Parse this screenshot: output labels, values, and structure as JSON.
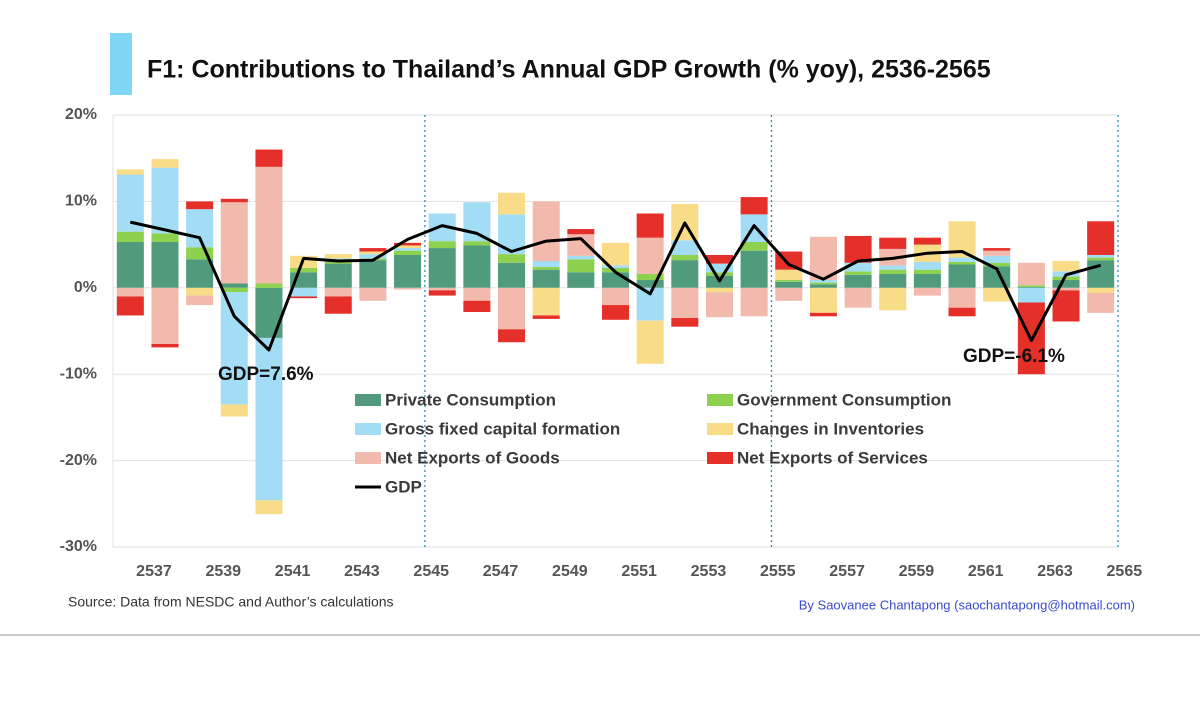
{
  "chart_data": {
    "type": "bar",
    "title": "F1: Contributions to Thailand’s Annual GDP Growth (% yoy), 2536-2565",
    "source": "Source: Data from NESDC and Author’s calculations",
    "credit": "By Saovanee Chantapong (saochantapong@hotmail.com)",
    "annotations": [
      "GDP=7.6%",
      "GDP=-6.1%"
    ],
    "x": [
      2536,
      2537,
      2538,
      2539,
      2540,
      2541,
      2542,
      2543,
      2544,
      2545,
      2546,
      2547,
      2548,
      2549,
      2550,
      2551,
      2552,
      2553,
      2554,
      2555,
      2556,
      2557,
      2558,
      2559,
      2560,
      2561,
      2562,
      2563,
      2564
    ],
    "xlim": [
      2535.5,
      2564.5
    ],
    "xticks": [
      2537,
      2539,
      2541,
      2543,
      2545,
      2547,
      2549,
      2551,
      2553,
      2555,
      2557,
      2559,
      2561,
      2563,
      2565
    ],
    "ylim": [
      -30,
      20
    ],
    "yticks": [
      {
        "value": 20,
        "label": "20%"
      },
      {
        "value": 10,
        "label": "10%"
      },
      {
        "value": 0,
        "label": "0%"
      },
      {
        "value": -10,
        "label": "-10%"
      },
      {
        "value": -20,
        "label": "-20%"
      },
      {
        "value": -30,
        "label": "-30%"
      }
    ],
    "grid": true,
    "vlines": [
      2544.5,
      2554.5,
      2564.5
    ],
    "series": [
      {
        "name": "Private Consumption",
        "color": "#4f9b7c",
        "values": [
          5.3,
          5.3,
          3.3,
          0.5,
          -5.8,
          1.8,
          2.8,
          3.2,
          3.8,
          4.6,
          4.9,
          2.9,
          2.1,
          1.8,
          1.8,
          0.9,
          3.2,
          1.4,
          4.3,
          0.7,
          0.4,
          1.5,
          1.6,
          1.6,
          2.7,
          2.5,
          0.1,
          0.9,
          3.2
        ]
      },
      {
        "name": "Government Consumption",
        "color": "#8ed14f",
        "values": [
          1.2,
          1.0,
          1.4,
          -0.5,
          0.5,
          0.5,
          0.3,
          0.2,
          0.5,
          0.8,
          0.5,
          1.0,
          0.3,
          1.5,
          0.5,
          0.7,
          0.6,
          0.4,
          1.0,
          0.2,
          0.2,
          0.4,
          0.5,
          0.5,
          0.3,
          0.4,
          0.2,
          0.4,
          0.3
        ]
      },
      {
        "name": "Gross fixed capital formation",
        "color": "#a3ddf5",
        "values": [
          6.6,
          7.6,
          4.4,
          -13.0,
          -18.8,
          -1.0,
          0.3,
          0.5,
          0.3,
          3.2,
          4.5,
          4.6,
          0.7,
          0.4,
          0.3,
          -3.8,
          1.7,
          1.0,
          3.2,
          0,
          0.3,
          1.0,
          0.5,
          0.9,
          0.5,
          0.8,
          -1.7,
          0.6,
          0.3
        ]
      },
      {
        "name": "Changes in Inventories",
        "color": "#f8dc88",
        "values": [
          0.6,
          1.0,
          -0.9,
          -1.4,
          -1.6,
          1.4,
          0.5,
          0.3,
          0.3,
          0,
          0,
          2.5,
          -3.2,
          0,
          2.6,
          -5.0,
          4.2,
          -0.5,
          0,
          1.2,
          -2.9,
          0,
          -2.6,
          2.0,
          4.2,
          -1.6,
          0,
          1.2,
          -0.6
        ]
      },
      {
        "name": "Net Exports of Goods",
        "color": "#f2b9ad",
        "values": [
          -1.0,
          -6.5,
          -1.1,
          9.4,
          13.5,
          0,
          -1.0,
          -1.5,
          -0.2,
          -0.3,
          -1.5,
          -4.8,
          6.9,
          2.5,
          -2.0,
          4.2,
          -3.5,
          -2.9,
          -3.3,
          -1.5,
          5.0,
          -2.3,
          1.9,
          -0.9,
          -2.3,
          0.6,
          2.6,
          -0.3,
          -2.3
        ]
      },
      {
        "name": "Net Exports of Services",
        "color": "#e5302a",
        "values": [
          -2.2,
          -0.4,
          0.9,
          0.4,
          2.0,
          -0.2,
          -2.0,
          0.4,
          0.3,
          -0.6,
          -1.3,
          -1.5,
          -0.4,
          0.6,
          -1.7,
          2.8,
          -1.0,
          1.0,
          2.0,
          2.1,
          -0.4,
          3.1,
          1.3,
          0.8,
          -1.0,
          0.3,
          -8.3,
          -3.6,
          3.9
        ]
      },
      {
        "name": "GDP",
        "type": "line",
        "color": "#000000",
        "values": [
          7.6,
          6.7,
          5.8,
          -3.3,
          -7.2,
          3.4,
          3.1,
          3.2,
          5.6,
          7.2,
          6.3,
          4.2,
          5.4,
          5.7,
          1.8,
          -0.7,
          7.5,
          0.8,
          7.2,
          2.7,
          1.0,
          3.1,
          3.4,
          4.0,
          4.2,
          2.2,
          -6.1,
          1.5,
          2.6
        ]
      }
    ]
  }
}
